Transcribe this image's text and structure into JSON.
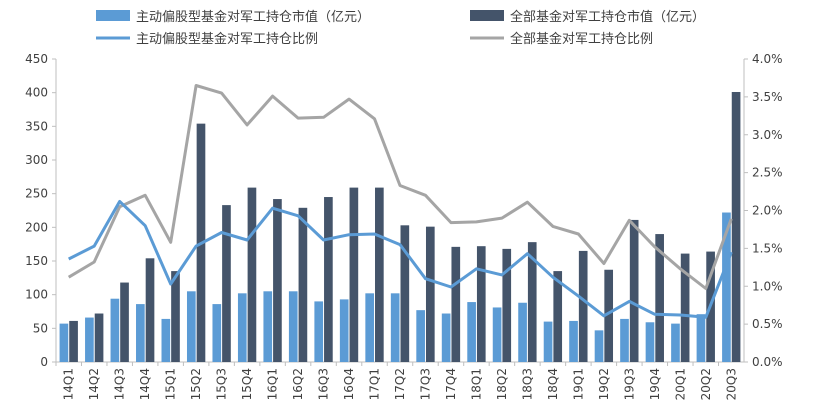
{
  "chart_data": {
    "type": "bar",
    "categories": [
      "14Q1",
      "14Q2",
      "14Q3",
      "14Q4",
      "15Q1",
      "15Q2",
      "15Q3",
      "15Q4",
      "16Q1",
      "16Q2",
      "16Q3",
      "16Q4",
      "17Q1",
      "17Q2",
      "17Q3",
      "17Q4",
      "18Q1",
      "18Q2",
      "18Q3",
      "18Q4",
      "19Q1",
      "19Q2",
      "19Q3",
      "19Q4",
      "20Q1",
      "20Q2",
      "20Q3"
    ],
    "y_left": {
      "min": 0,
      "max": 450,
      "step": 50,
      "ticks": [
        "0",
        "50",
        "100",
        "150",
        "200",
        "250",
        "300",
        "350",
        "400",
        "450"
      ]
    },
    "y_right": {
      "min": 0,
      "max": 4.0,
      "step": 0.5,
      "ticks": [
        "0.0%",
        "0.5%",
        "1.0%",
        "1.5%",
        "2.0%",
        "2.5%",
        "3.0%",
        "3.5%",
        "4.0%"
      ]
    },
    "series": [
      {
        "name": "主动偏股型基金对军工持仓市值（亿元）",
        "kind": "bar",
        "axis": "left",
        "color": "#5b9bd5",
        "values": [
          57,
          66,
          94,
          86,
          64,
          105,
          86,
          102,
          105,
          105,
          90,
          93,
          102,
          102,
          77,
          72,
          89,
          81,
          88,
          60,
          61,
          47,
          64,
          59,
          57,
          71,
          222
        ]
      },
      {
        "name": "全部基金对军工持仓市值（亿元）",
        "kind": "bar",
        "axis": "left",
        "color": "#44546a",
        "values": [
          61,
          72,
          118,
          154,
          135,
          354,
          233,
          259,
          242,
          229,
          245,
          259,
          259,
          203,
          201,
          171,
          172,
          168,
          178,
          135,
          165,
          137,
          211,
          190,
          161,
          164,
          401
        ]
      },
      {
        "name": "主动偏股型基金对军工持仓比例",
        "kind": "line",
        "axis": "right",
        "color": "#5b9bd5",
        "values": [
          1.36,
          1.53,
          2.12,
          1.8,
          1.03,
          1.53,
          1.71,
          1.61,
          2.03,
          1.93,
          1.61,
          1.68,
          1.69,
          1.55,
          1.1,
          0.99,
          1.23,
          1.15,
          1.43,
          1.12,
          0.87,
          0.61,
          0.8,
          0.63,
          0.62,
          0.59,
          1.45
        ]
      },
      {
        "name": "全部基金对军工持仓比例",
        "kind": "line",
        "axis": "right",
        "color": "#a5a5a5",
        "values": [
          1.12,
          1.32,
          2.05,
          2.2,
          1.58,
          3.65,
          3.55,
          3.13,
          3.51,
          3.22,
          3.23,
          3.47,
          3.21,
          2.33,
          2.2,
          1.84,
          1.85,
          1.9,
          2.11,
          1.79,
          1.69,
          1.3,
          1.87,
          1.52,
          1.23,
          0.97,
          1.89
        ]
      }
    ],
    "legend": {
      "placement": "top",
      "items": [
        "主动偏股型基金对军工持仓市值（亿元）",
        "全部基金对军工持仓市值（亿元）",
        "主动偏股型基金对军工持仓比例",
        "全部基金对军工持仓比例"
      ]
    }
  }
}
